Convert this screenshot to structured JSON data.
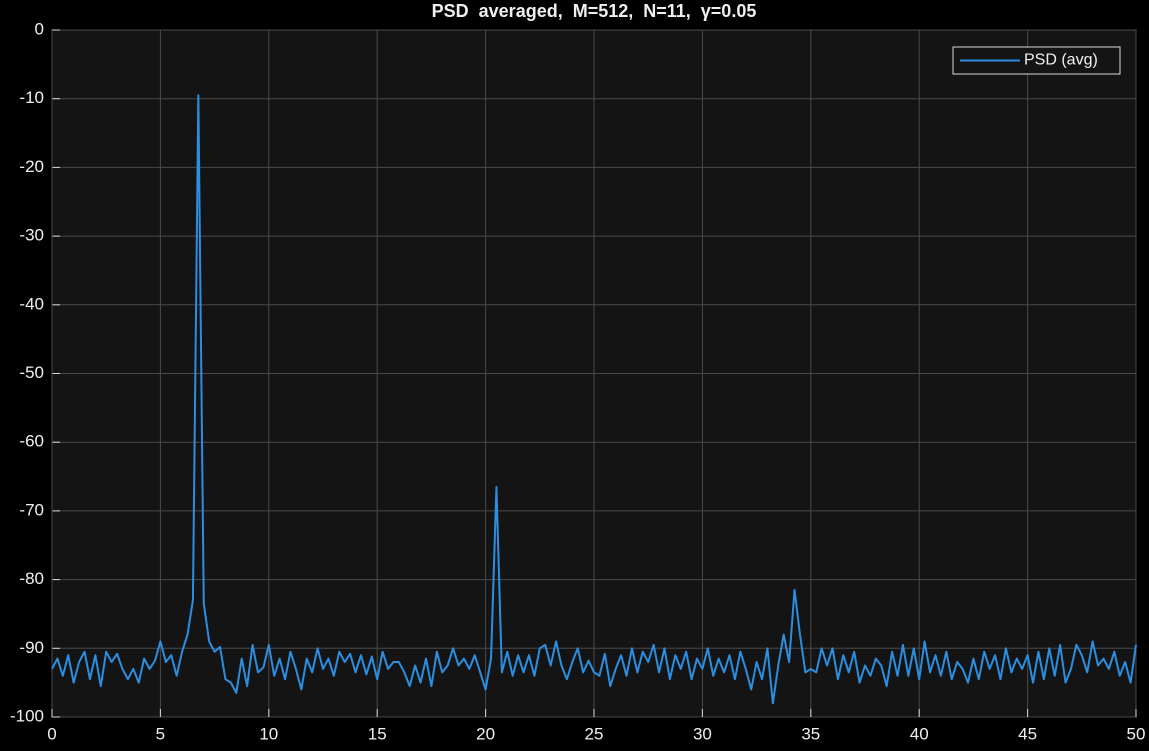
{
  "chart_data": {
    "type": "line",
    "title": "PSD  averaged,  M=512,  N=11,  γ=0.05",
    "x": [
      0,
      0.25,
      0.5,
      0.75,
      1,
      1.25,
      1.5,
      1.75,
      2,
      2.25,
      2.5,
      2.75,
      3,
      3.25,
      3.5,
      3.75,
      4,
      4.25,
      4.5,
      4.75,
      5,
      5.25,
      5.5,
      5.75,
      6,
      6.25,
      6.5,
      6.75,
      7,
      7.25,
      7.5,
      7.75,
      8,
      8.25,
      8.5,
      8.75,
      9,
      9.25,
      9.5,
      9.75,
      10,
      10.25,
      10.5,
      10.75,
      11,
      11.25,
      11.5,
      11.75,
      12,
      12.25,
      12.5,
      12.75,
      13,
      13.25,
      13.5,
      13.75,
      14,
      14.25,
      14.5,
      14.75,
      15,
      15.25,
      15.5,
      15.75,
      16,
      16.25,
      16.5,
      16.75,
      17,
      17.25,
      17.5,
      17.75,
      18,
      18.25,
      18.5,
      18.75,
      19,
      19.25,
      19.5,
      19.75,
      20,
      20.25,
      20.5,
      20.75,
      21,
      21.25,
      21.5,
      21.75,
      22,
      22.25,
      22.5,
      22.75,
      23,
      23.25,
      23.5,
      23.75,
      24,
      24.25,
      24.5,
      24.75,
      25,
      25.25,
      25.5,
      25.75,
      26,
      26.25,
      26.5,
      26.75,
      27,
      27.25,
      27.5,
      27.75,
      28,
      28.25,
      28.5,
      28.75,
      29,
      29.25,
      29.5,
      29.75,
      30,
      30.25,
      30.5,
      30.75,
      31,
      31.25,
      31.5,
      31.75,
      32,
      32.25,
      32.5,
      32.75,
      33,
      33.25,
      33.5,
      33.75,
      34,
      34.25,
      34.5,
      34.75,
      35,
      35.25,
      35.5,
      35.75,
      36,
      36.25,
      36.5,
      36.75,
      37,
      37.25,
      37.5,
      37.75,
      38,
      38.25,
      38.5,
      38.75,
      39,
      39.25,
      39.5,
      39.75,
      40,
      40.25,
      40.5,
      40.75,
      41,
      41.25,
      41.5,
      41.75,
      42,
      42.25,
      42.5,
      42.75,
      43,
      43.25,
      43.5,
      43.75,
      44,
      44.25,
      44.5,
      44.75,
      45,
      45.25,
      45.5,
      45.75,
      46,
      46.25,
      46.5,
      46.75,
      47,
      47.25,
      47.5,
      47.75,
      48,
      48.25,
      48.5,
      48.75,
      49,
      49.25,
      49.5,
      49.75,
      50
    ],
    "series": [
      {
        "name": "PSD (avg)",
        "color": "#2b8ee0",
        "values": [
          -93,
          -91.5,
          -94,
          -91,
          -95,
          -92,
          -90.5,
          -94.5,
          -91,
          -95.5,
          -90.5,
          -92,
          -90.8,
          -93,
          -94.5,
          -93,
          -95,
          -91.5,
          -93,
          -91.8,
          -89,
          -92,
          -91,
          -94,
          -90.5,
          -88,
          -83,
          -9.5,
          -83.5,
          -89,
          -90.5,
          -89.8,
          -94.5,
          -95,
          -96.5,
          -91.5,
          -95.5,
          -89.5,
          -93.5,
          -92.8,
          -89.5,
          -94,
          -91.5,
          -94.5,
          -90.5,
          -93,
          -96,
          -91.5,
          -93.5,
          -90,
          -93,
          -91.5,
          -94,
          -90.5,
          -92,
          -90.8,
          -93.5,
          -91,
          -93.8,
          -91.2,
          -94.5,
          -90.5,
          -93,
          -92,
          -92,
          -93.5,
          -95.5,
          -92.5,
          -95,
          -91.5,
          -95.5,
          -90.5,
          -93.5,
          -92.5,
          -90,
          -92.5,
          -91.5,
          -93,
          -91,
          -93.5,
          -96,
          -91.5,
          -66.5,
          -93.5,
          -90.5,
          -94,
          -91,
          -93.5,
          -91,
          -94,
          -90,
          -89.5,
          -92.5,
          -89,
          -92.5,
          -94.5,
          -92,
          -90,
          -93.5,
          -91.8,
          -93.5,
          -94,
          -90.8,
          -95.5,
          -93,
          -91,
          -94,
          -90,
          -93.5,
          -90.5,
          -92,
          -89.5,
          -93.5,
          -90,
          -94.5,
          -91,
          -93,
          -90.5,
          -94.5,
          -91.5,
          -93,
          -90,
          -94,
          -91.5,
          -93.5,
          -91,
          -94.5,
          -90.5,
          -93,
          -96,
          -92,
          -94.5,
          -90,
          -98,
          -92.5,
          -88,
          -92,
          -81.5,
          -88,
          -93.5,
          -93,
          -93.5,
          -90,
          -92.5,
          -90,
          -94.5,
          -91,
          -93.5,
          -90.5,
          -95,
          -92.5,
          -94,
          -91.5,
          -92.5,
          -95.5,
          -90.5,
          -94,
          -89.5,
          -94,
          -90,
          -94.5,
          -89,
          -93.5,
          -91,
          -94,
          -90.5,
          -94.5,
          -92,
          -93,
          -95,
          -91.5,
          -94.5,
          -90.5,
          -93,
          -91,
          -94.5,
          -90,
          -93.5,
          -91.5,
          -93,
          -91,
          -95,
          -90.5,
          -94.5,
          -90,
          -94,
          -89.5,
          -95,
          -93,
          -89.5,
          -91,
          -93.5,
          -89,
          -92.5,
          -91.5,
          -93,
          -90.5,
          -94,
          -92,
          -95,
          -89.5
        ]
      }
    ],
    "xlim": [
      0,
      50
    ],
    "xticks": [
      0,
      5,
      10,
      15,
      20,
      25,
      30,
      35,
      40,
      45,
      50
    ],
    "ylim": [
      -100,
      0
    ],
    "yticks": [
      -100,
      -90,
      -80,
      -70,
      -60,
      -50,
      -40,
      -30,
      -20,
      -10,
      0
    ],
    "grid": true,
    "legend": "northeast"
  }
}
